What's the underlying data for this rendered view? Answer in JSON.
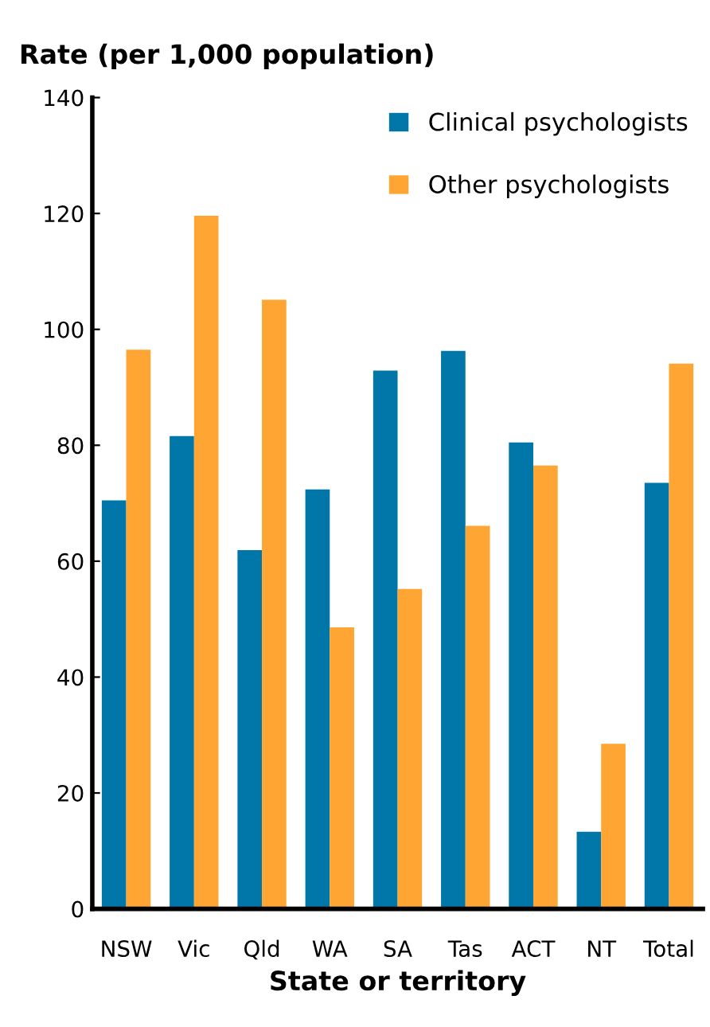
{
  "chart_data": {
    "type": "bar",
    "ylabel": "Rate (per 1,000 population)",
    "xlabel": "State or territory",
    "categories": [
      "NSW",
      "Vic",
      "Qld",
      "WA",
      "SA",
      "Tas",
      "ACT",
      "NT",
      "Total"
    ],
    "series": [
      {
        "name": "Clinical psychologists",
        "color": "#0077a8",
        "values": [
          70.5,
          81.6,
          61.9,
          72.4,
          92.9,
          96.3,
          80.5,
          13.3,
          73.5
        ]
      },
      {
        "name": "Other psychologists",
        "color": "#ffa533",
        "values": [
          96.5,
          119.6,
          105.1,
          48.6,
          55.2,
          66.1,
          76.5,
          28.5,
          94.1
        ]
      }
    ],
    "ylim": [
      0,
      140
    ],
    "yticks": [
      0,
      20,
      40,
      60,
      80,
      100,
      120,
      140
    ],
    "grid": false,
    "legend": "top right"
  }
}
